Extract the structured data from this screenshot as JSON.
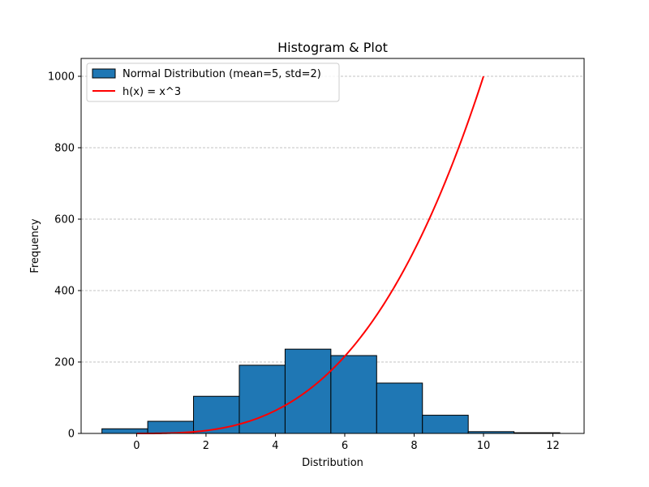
{
  "chart_data": {
    "type": "bar",
    "title": "Histogram & Plot",
    "xlabel": "Distribution",
    "ylabel": "Frequency",
    "xlim": [
      -1.6,
      12.9
    ],
    "ylim": [
      0,
      1050
    ],
    "xticks": [
      0,
      2,
      4,
      6,
      8,
      10,
      12
    ],
    "yticks": [
      0,
      200,
      400,
      600,
      800,
      1000
    ],
    "grid": {
      "y": true,
      "style": "dashed"
    },
    "legend_position": "top-left",
    "histogram": {
      "name": "Normal Distribution (mean=5, std=2)",
      "color": "#1f77b4",
      "edge_color": "#000000",
      "bins": [
        {
          "start": -1.0,
          "end": 0.32,
          "count": 13
        },
        {
          "start": 0.32,
          "end": 1.64,
          "count": 34
        },
        {
          "start": 1.64,
          "end": 2.96,
          "count": 104
        },
        {
          "start": 2.96,
          "end": 4.28,
          "count": 191
        },
        {
          "start": 4.28,
          "end": 5.6,
          "count": 236
        },
        {
          "start": 5.6,
          "end": 6.92,
          "count": 218
        },
        {
          "start": 6.92,
          "end": 8.24,
          "count": 141
        },
        {
          "start": 8.24,
          "end": 9.56,
          "count": 51
        },
        {
          "start": 9.56,
          "end": 10.88,
          "count": 5
        },
        {
          "start": 10.88,
          "end": 12.2,
          "count": 2
        }
      ]
    },
    "line": {
      "name": "h(x) = x^3",
      "color": "#ff0000",
      "function": "x^3",
      "x_range": [
        0,
        10
      ]
    }
  }
}
